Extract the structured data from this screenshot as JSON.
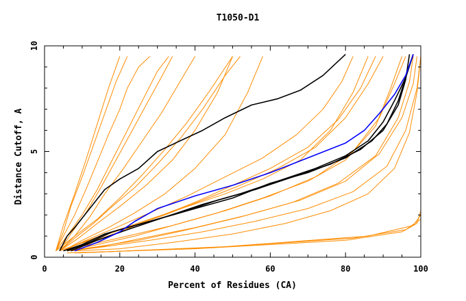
{
  "chart_data": {
    "type": "line",
    "title": "T1050-D1",
    "xlabel": "Percent of Residues (CA)",
    "ylabel": "Distance Cutoff, A",
    "xlim": [
      0,
      100
    ],
    "ylim": [
      0,
      10
    ],
    "x_ticks": [
      "0",
      "20",
      "40",
      "60",
      "80",
      "100"
    ],
    "y_ticks": [
      "0",
      "5",
      "10"
    ],
    "grid": false,
    "legend": "none",
    "colors": {
      "orange": "#ff8c00",
      "black": "#000000",
      "blue": "#0000ff",
      "axes": "#000000"
    },
    "series": [
      {
        "color": "orange",
        "x": [
          3,
          5,
          8,
          11,
          14,
          17,
          20,
          22,
          25,
          28
        ],
        "y": [
          0.3,
          1.0,
          2.0,
          3.2,
          4.5,
          5.8,
          7.0,
          8.0,
          9.0,
          9.5
        ]
      },
      {
        "color": "orange",
        "x": [
          3,
          6,
          10,
          14,
          18,
          22,
          26,
          30,
          33
        ],
        "y": [
          0.3,
          1.0,
          2.0,
          3.2,
          4.6,
          6.0,
          7.4,
          8.8,
          9.5
        ]
      },
      {
        "color": "orange",
        "x": [
          4,
          8,
          12,
          16,
          21,
          26,
          31,
          36,
          40
        ],
        "y": [
          0.3,
          1.0,
          1.9,
          3.0,
          4.2,
          5.5,
          6.8,
          8.3,
          9.5
        ]
      },
      {
        "color": "orange",
        "x": [
          4,
          9,
          14,
          20,
          27,
          34,
          40,
          46,
          50
        ],
        "y": [
          0.3,
          0.9,
          1.6,
          2.4,
          3.4,
          4.6,
          6.0,
          7.8,
          9.5
        ]
      },
      {
        "color": "orange",
        "x": [
          5,
          10,
          17,
          24,
          32,
          40,
          48,
          54,
          58
        ],
        "y": [
          0.3,
          0.8,
          1.4,
          2.1,
          3.0,
          4.2,
          5.8,
          7.8,
          9.5
        ]
      },
      {
        "color": "orange",
        "x": [
          4,
          8,
          13,
          18,
          24,
          30,
          36,
          42,
          48,
          52
        ],
        "y": [
          0.3,
          0.9,
          1.6,
          2.4,
          3.3,
          4.4,
          5.6,
          7.0,
          8.6,
          9.5
        ]
      },
      {
        "color": "orange",
        "x": [
          3,
          5,
          7,
          10,
          13,
          16,
          19,
          22
        ],
        "y": [
          0.3,
          1.2,
          2.4,
          3.8,
          5.3,
          6.8,
          8.3,
          9.5
        ]
      },
      {
        "color": "orange",
        "x": [
          4,
          10,
          18,
          28,
          38,
          48,
          58,
          68,
          76,
          82,
          86
        ],
        "y": [
          0.3,
          0.7,
          1.2,
          1.8,
          2.4,
          3.0,
          3.7,
          4.6,
          6.0,
          7.8,
          9.5
        ]
      },
      {
        "color": "orange",
        "x": [
          5,
          12,
          22,
          34,
          46,
          58,
          70,
          80,
          88,
          92,
          95
        ],
        "y": [
          0.3,
          0.6,
          1.0,
          1.5,
          2.1,
          2.8,
          3.6,
          4.6,
          6.2,
          8.0,
          9.5
        ]
      },
      {
        "color": "orange",
        "x": [
          6,
          14,
          25,
          38,
          52,
          66,
          78,
          88,
          94,
          97,
          98
        ],
        "y": [
          0.3,
          0.5,
          0.8,
          1.3,
          1.9,
          2.6,
          3.5,
          4.8,
          6.6,
          8.3,
          9.5
        ]
      },
      {
        "color": "orange",
        "x": [
          7,
          16,
          28,
          42,
          56,
          70,
          82,
          91,
          96,
          99,
          100
        ],
        "y": [
          0.3,
          0.5,
          0.8,
          1.2,
          1.7,
          2.3,
          3.1,
          4.3,
          6.0,
          8.0,
          9.5
        ]
      },
      {
        "color": "orange",
        "x": [
          6,
          14,
          24,
          36,
          48,
          60,
          72,
          82,
          89,
          93,
          96
        ],
        "y": [
          0.3,
          0.6,
          1.0,
          1.6,
          2.2,
          2.9,
          3.8,
          5.0,
          6.6,
          8.2,
          9.5
        ]
      },
      {
        "color": "orange",
        "x": [
          5,
          12,
          20,
          30,
          40,
          50,
          60,
          70,
          78,
          84,
          88
        ],
        "y": [
          0.3,
          0.7,
          1.2,
          1.9,
          2.6,
          3.4,
          4.2,
          5.2,
          6.5,
          8.0,
          9.5
        ]
      },
      {
        "color": "orange",
        "x": [
          3,
          8,
          14,
          20,
          26,
          32,
          38,
          44,
          50
        ],
        "y": [
          0.3,
          1.0,
          1.8,
          2.8,
          3.9,
          5.1,
          6.4,
          7.9,
          9.5
        ]
      },
      {
        "color": "orange",
        "x": [
          3,
          5,
          8,
          11,
          14,
          17,
          20
        ],
        "y": [
          0.3,
          1.5,
          3.0,
          4.6,
          6.3,
          8.0,
          9.5
        ]
      },
      {
        "color": "orange",
        "x": [
          4,
          12,
          22,
          32,
          42,
          52,
          62,
          72,
          80,
          86,
          90
        ],
        "y": [
          0.3,
          0.8,
          1.4,
          2.0,
          2.7,
          3.4,
          4.2,
          5.2,
          6.6,
          8.2,
          9.5
        ]
      },
      {
        "color": "orange",
        "x": [
          6,
          15,
          26,
          40,
          54,
          68,
          80,
          89,
          95,
          98,
          99
        ],
        "y": [
          0.3,
          0.5,
          0.9,
          1.4,
          2.0,
          2.7,
          3.6,
          4.9,
          6.6,
          8.2,
          9.5
        ]
      },
      {
        "color": "orange",
        "x": [
          8,
          20,
          34,
          50,
          64,
          76,
          86,
          93,
          97,
          99,
          100
        ],
        "y": [
          0.3,
          0.4,
          0.7,
          1.1,
          1.6,
          2.2,
          3.0,
          4.2,
          5.9,
          7.8,
          9.5
        ]
      },
      {
        "color": "orange",
        "x": [
          5,
          11,
          19,
          28,
          38,
          48,
          58,
          67,
          74,
          79,
          82
        ],
        "y": [
          0.3,
          0.8,
          1.4,
          2.1,
          2.9,
          3.8,
          4.7,
          5.8,
          7.0,
          8.3,
          9.5
        ]
      },
      {
        "color": "orange",
        "x": [
          4,
          7,
          11,
          15,
          19,
          23,
          27,
          31,
          34
        ],
        "y": [
          0.3,
          1.1,
          2.1,
          3.3,
          4.6,
          5.9,
          7.2,
          8.5,
          9.5
        ]
      },
      {
        "color": "orange",
        "x": [
          6,
          40,
          80,
          95,
          99,
          100,
          100,
          100
        ],
        "y": [
          0.2,
          0.4,
          0.8,
          1.2,
          1.6,
          2.2,
          4.0,
          5.8
        ]
      },
      {
        "color": "orange",
        "x": [
          8,
          44,
          82,
          96,
          100,
          100
        ],
        "y": [
          0.2,
          0.45,
          0.9,
          1.3,
          1.8,
          4.8
        ]
      },
      {
        "color": "orange",
        "x": [
          9,
          48,
          86,
          98,
          100
        ],
        "y": [
          0.2,
          0.5,
          1.0,
          1.5,
          2.0
        ]
      },
      {
        "color": "black",
        "x": [
          4,
          6,
          8,
          12,
          16,
          20,
          25,
          30,
          36,
          42,
          48,
          55,
          62,
          68,
          74,
          80
        ],
        "y": [
          0.3,
          1.0,
          1.4,
          2.3,
          3.2,
          3.7,
          4.2,
          5.0,
          5.5,
          6.0,
          6.6,
          7.2,
          7.5,
          7.9,
          8.6,
          9.6
        ]
      },
      {
        "color": "black",
        "x": [
          5,
          10,
          16,
          22,
          30,
          40,
          50,
          60,
          70,
          80,
          87,
          91,
          94,
          96,
          98
        ],
        "y": [
          0.3,
          0.6,
          1.1,
          1.4,
          1.8,
          2.3,
          2.8,
          3.5,
          4.0,
          4.7,
          5.5,
          6.3,
          7.4,
          8.5,
          9.6
        ]
      },
      {
        "color": "black",
        "x": [
          6,
          12,
          18,
          26,
          36,
          46,
          56,
          66,
          76,
          84,
          90,
          94,
          96,
          97
        ],
        "y": [
          0.3,
          0.7,
          1.2,
          1.6,
          2.1,
          2.7,
          3.2,
          3.8,
          4.4,
          5.1,
          6.0,
          7.2,
          8.4,
          9.6
        ]
      },
      {
        "color": "black",
        "x": [
          7,
          14,
          22,
          32,
          42,
          52,
          62,
          72,
          80,
          86,
          90,
          93,
          96,
          98
        ],
        "y": [
          0.3,
          0.8,
          1.3,
          1.9,
          2.5,
          3.0,
          3.6,
          4.2,
          4.8,
          5.5,
          6.4,
          7.4,
          8.5,
          9.6
        ]
      },
      {
        "color": "blue",
        "x": [
          8,
          14,
          20,
          24,
          30,
          40,
          50,
          60,
          70,
          80,
          85,
          89,
          93,
          96,
          98
        ],
        "y": [
          0.3,
          0.7,
          1.2,
          1.7,
          2.3,
          2.9,
          3.4,
          4.0,
          4.7,
          5.4,
          6.0,
          6.8,
          7.7,
          8.6,
          9.6
        ]
      }
    ]
  }
}
